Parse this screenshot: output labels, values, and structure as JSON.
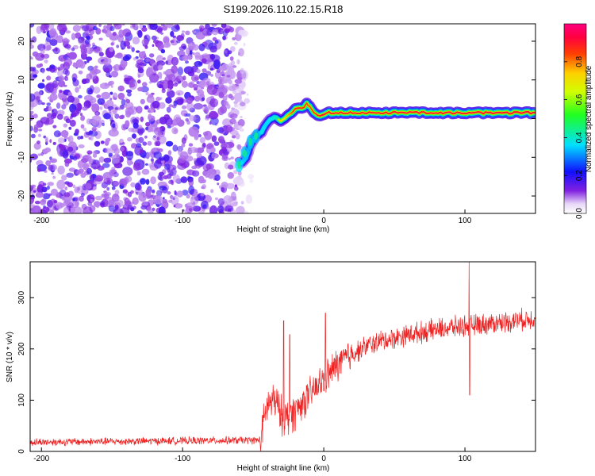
{
  "chart_data": [
    {
      "type": "heatmap",
      "title": "S199.2026.110.22.15.R18",
      "xlabel": "Height of straight line (km)",
      "ylabel": "Frequency (Hz)",
      "xlim": [
        -208,
        150
      ],
      "ylim": [
        -24.5,
        24.5
      ],
      "x_ticks": [
        -200,
        -100,
        0,
        100
      ],
      "y_ticks": [
        -20,
        -10,
        0,
        10,
        20
      ],
      "colorbar": {
        "label": "Normalized spectral amplitude",
        "range": [
          0,
          1
        ],
        "ticks": [
          "0.0",
          "0.2",
          "0.4",
          "0.6",
          "0.8"
        ],
        "tick_values": [
          0,
          0.2,
          0.4,
          0.6,
          0.8
        ]
      },
      "noise_region": {
        "x": [
          -208,
          -55
        ],
        "y": [
          -24.5,
          24.5
        ]
      },
      "ridge": [
        {
          "x": -58,
          "y": -11.5,
          "a": 0.4
        },
        {
          "x": -55,
          "y": -10,
          "a": 0.35
        },
        {
          "x": -52,
          "y": -7,
          "a": 0.3
        },
        {
          "x": -49,
          "y": -5,
          "a": 0.35
        },
        {
          "x": -46,
          "y": -4,
          "a": 0.3
        },
        {
          "x": -44,
          "y": -3.5,
          "a": 0.45
        },
        {
          "x": -41,
          "y": -1.5,
          "a": 0.4
        },
        {
          "x": -38,
          "y": 0,
          "a": 0.45
        },
        {
          "x": -35,
          "y": 0.5,
          "a": 0.5
        },
        {
          "x": -32,
          "y": -0.5,
          "a": 0.6
        },
        {
          "x": -29,
          "y": -0.5,
          "a": 0.65
        },
        {
          "x": -26,
          "y": 0.5,
          "a": 0.7
        },
        {
          "x": -23,
          "y": 1.5,
          "a": 0.8
        },
        {
          "x": -20,
          "y": 2.5,
          "a": 0.9
        },
        {
          "x": -17,
          "y": 2.5,
          "a": 0.9
        },
        {
          "x": -14,
          "y": 3,
          "a": 0.85
        },
        {
          "x": -12,
          "y": 4,
          "a": 0.8
        },
        {
          "x": -10,
          "y": 3,
          "a": 0.8
        },
        {
          "x": -7,
          "y": 1.5,
          "a": 0.85
        },
        {
          "x": -4,
          "y": 1,
          "a": 0.9
        },
        {
          "x": -1,
          "y": 0.8,
          "a": 0.95
        },
        {
          "x": 2,
          "y": 1.5,
          "a": 0.9
        },
        {
          "x": 150,
          "y": 1.5,
          "a": 0.95
        }
      ]
    },
    {
      "type": "line",
      "title": "",
      "xlabel": "Height of straight line (km)",
      "ylabel": "SNR (10 * v/v)",
      "xlim": [
        -208,
        150
      ],
      "ylim": [
        0,
        370
      ],
      "x_ticks": [
        -200,
        -100,
        0,
        100
      ],
      "y_ticks": [
        0,
        100,
        200,
        300
      ],
      "series": [
        {
          "color": "#ee2222",
          "trend": [
            {
              "x": -208,
              "y": 18
            },
            {
              "x": -45,
              "y": 22
            },
            {
              "x": -40,
              "y": 90
            },
            {
              "x": -35,
              "y": 100
            },
            {
              "x": -30,
              "y": 70
            },
            {
              "x": -25,
              "y": 65
            },
            {
              "x": -20,
              "y": 80
            },
            {
              "x": -15,
              "y": 95
            },
            {
              "x": -10,
              "y": 110
            },
            {
              "x": -5,
              "y": 125
            },
            {
              "x": 0,
              "y": 140
            },
            {
              "x": 10,
              "y": 170
            },
            {
              "x": 20,
              "y": 190
            },
            {
              "x": 30,
              "y": 205
            },
            {
              "x": 40,
              "y": 215
            },
            {
              "x": 60,
              "y": 228
            },
            {
              "x": 80,
              "y": 238
            },
            {
              "x": 100,
              "y": 245
            },
            {
              "x": 120,
              "y": 250
            },
            {
              "x": 150,
              "y": 260
            }
          ],
          "spikes": [
            {
              "x": -28.5,
              "y": 255
            },
            {
              "x": -24,
              "y": 228
            },
            {
              "x": 1.2,
              "y": 270
            },
            {
              "x": 103,
              "y": 370
            },
            {
              "x": 103.4,
              "y": 110
            }
          ]
        }
      ]
    }
  ]
}
